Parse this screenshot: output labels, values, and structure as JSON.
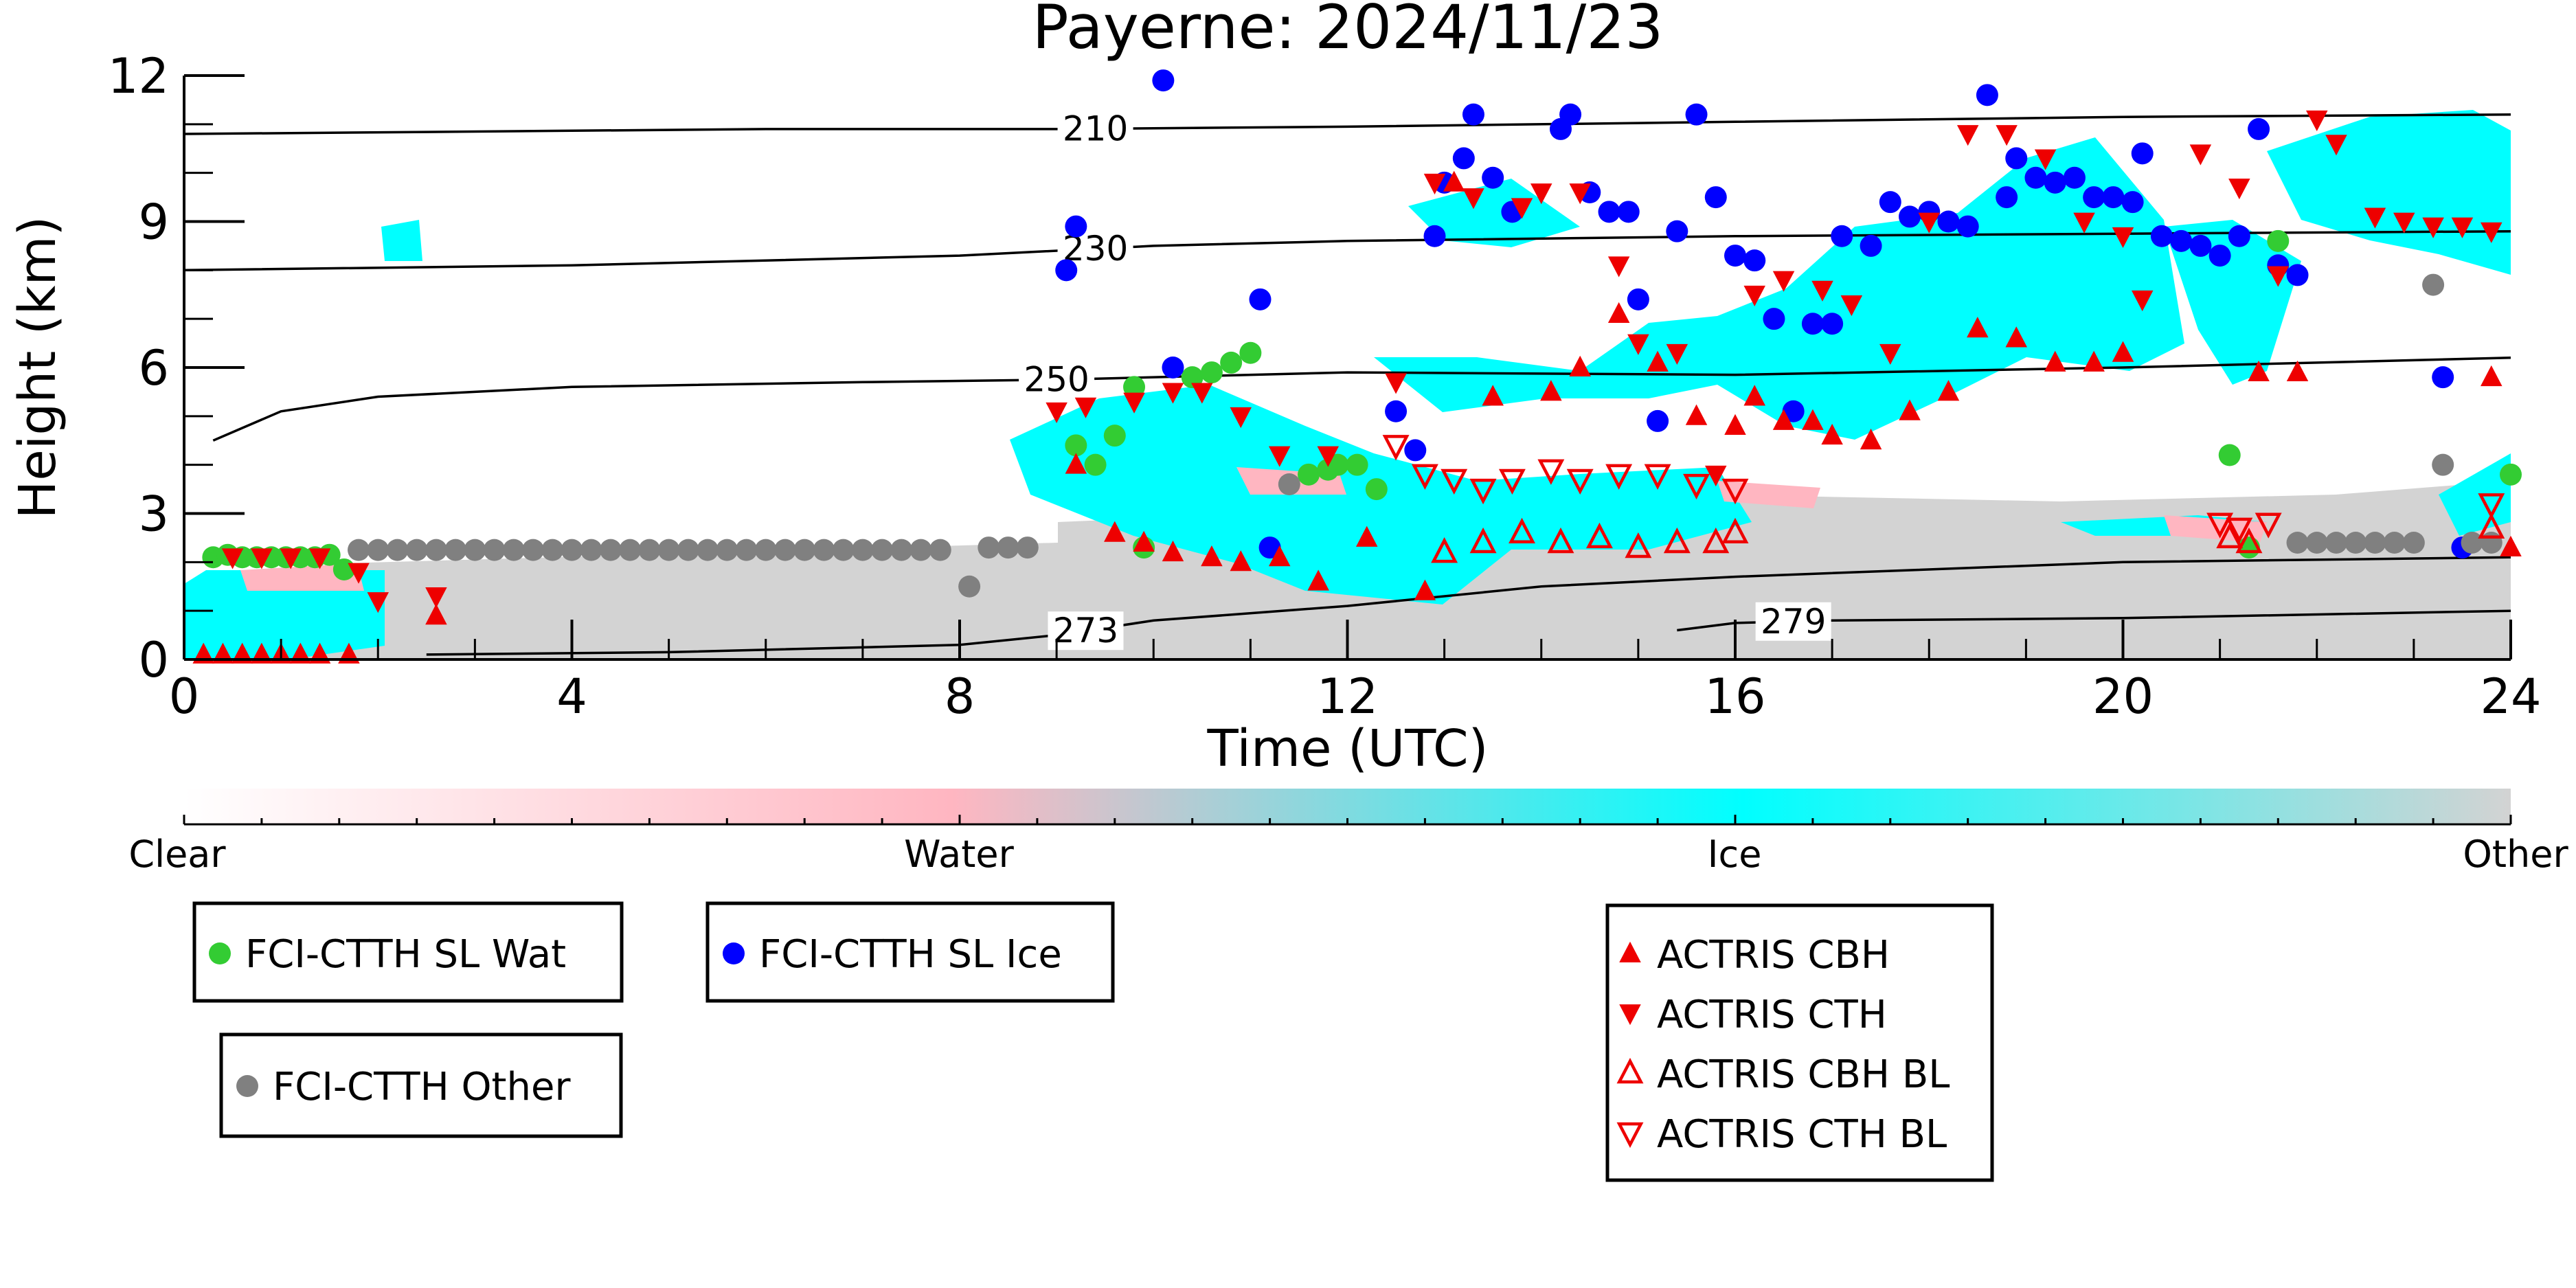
{
  "chart_data": {
    "type": "scatter",
    "title": "Payerne: 2024/11/23",
    "xlabel": "Time (UTC)",
    "ylabel": "Height (km)",
    "xlim": [
      0,
      24
    ],
    "ylim": [
      0,
      12
    ],
    "xticks": [
      0,
      4,
      8,
      12,
      16,
      20,
      24
    ],
    "yticks": [
      0,
      3,
      6,
      9,
      12
    ],
    "grid": false,
    "colorbar": {
      "labels": [
        "Clear",
        "Water",
        "Ice",
        "Other"
      ],
      "colors": [
        "#ffffff",
        "#ffb6c1",
        "#00ffff",
        "#d3d3d3"
      ]
    },
    "contours": [
      {
        "label": "210",
        "label_x": 9.4,
        "points": [
          [
            0,
            10.8
          ],
          [
            3,
            10.85
          ],
          [
            6,
            10.9
          ],
          [
            9,
            10.9
          ],
          [
            12,
            10.95
          ],
          [
            16,
            11.05
          ],
          [
            20,
            11.15
          ],
          [
            24,
            11.2
          ]
        ]
      },
      {
        "label": "230",
        "label_x": 9.4,
        "points": [
          [
            0,
            8.0
          ],
          [
            4,
            8.1
          ],
          [
            8,
            8.3
          ],
          [
            10,
            8.5
          ],
          [
            12,
            8.6
          ],
          [
            16,
            8.7
          ],
          [
            20,
            8.75
          ],
          [
            24,
            8.8
          ]
        ]
      },
      {
        "label": "250",
        "label_x": 9.0,
        "points": [
          [
            0.3,
            4.5
          ],
          [
            1,
            5.1
          ],
          [
            2,
            5.4
          ],
          [
            4,
            5.6
          ],
          [
            7,
            5.7
          ],
          [
            9,
            5.75
          ],
          [
            12,
            5.9
          ],
          [
            16,
            5.85
          ],
          [
            20,
            6.0
          ],
          [
            24,
            6.2
          ]
        ]
      },
      {
        "label": "273",
        "label_x": 9.3,
        "points": [
          [
            2.5,
            0.1
          ],
          [
            5,
            0.15
          ],
          [
            8,
            0.3
          ],
          [
            9,
            0.5
          ],
          [
            10,
            0.8
          ],
          [
            12,
            1.1
          ],
          [
            14,
            1.5
          ],
          [
            16,
            1.7
          ],
          [
            20,
            2.0
          ],
          [
            24,
            2.1
          ]
        ]
      },
      {
        "label": "279",
        "label_x": 16.6,
        "points": [
          [
            15.4,
            0.6
          ],
          [
            16,
            0.75
          ],
          [
            17,
            0.8
          ],
          [
            20,
            0.85
          ],
          [
            24,
            1.0
          ]
        ]
      }
    ],
    "series": [
      {
        "name": "FCI-CTTH SL Wat",
        "marker": "circle",
        "color": "#33cc33",
        "points": [
          [
            0.3,
            2.1
          ],
          [
            0.45,
            2.15
          ],
          [
            0.6,
            2.1
          ],
          [
            0.75,
            2.1
          ],
          [
            0.9,
            2.1
          ],
          [
            1.05,
            2.1
          ],
          [
            1.2,
            2.1
          ],
          [
            1.35,
            2.1
          ],
          [
            1.5,
            2.15
          ],
          [
            1.65,
            1.85
          ],
          [
            9.2,
            4.4
          ],
          [
            9.4,
            4.0
          ],
          [
            9.6,
            4.6
          ],
          [
            9.8,
            5.6
          ],
          [
            9.9,
            2.3
          ],
          [
            10.4,
            5.8
          ],
          [
            10.6,
            5.9
          ],
          [
            10.8,
            6.1
          ],
          [
            11.0,
            6.3
          ],
          [
            11.6,
            3.8
          ],
          [
            11.8,
            3.9
          ],
          [
            11.9,
            4.0
          ],
          [
            12.1,
            4.0
          ],
          [
            12.3,
            3.5
          ],
          [
            21.1,
            4.2
          ],
          [
            21.3,
            2.3
          ],
          [
            21.6,
            8.6
          ],
          [
            24.0,
            3.8
          ]
        ]
      },
      {
        "name": "FCI-CTTH SL Ice",
        "marker": "circle",
        "color": "#0000ff",
        "points": [
          [
            9.1,
            8.0
          ],
          [
            9.2,
            8.9
          ],
          [
            10.1,
            11.9
          ],
          [
            10.2,
            6.0
          ],
          [
            11.1,
            7.4
          ],
          [
            11.2,
            2.3
          ],
          [
            12.5,
            5.1
          ],
          [
            12.7,
            4.3
          ],
          [
            12.9,
            8.7
          ],
          [
            13.0,
            9.8
          ],
          [
            13.2,
            10.3
          ],
          [
            13.3,
            11.2
          ],
          [
            13.5,
            9.9
          ],
          [
            13.7,
            9.2
          ],
          [
            14.2,
            10.9
          ],
          [
            14.3,
            11.2
          ],
          [
            14.5,
            9.6
          ],
          [
            14.7,
            9.2
          ],
          [
            14.9,
            9.2
          ],
          [
            15.0,
            7.4
          ],
          [
            15.2,
            4.9
          ],
          [
            15.4,
            8.8
          ],
          [
            15.6,
            11.2
          ],
          [
            15.8,
            9.5
          ],
          [
            16.0,
            8.3
          ],
          [
            16.2,
            8.2
          ],
          [
            16.4,
            7.0
          ],
          [
            16.6,
            5.1
          ],
          [
            16.8,
            6.9
          ],
          [
            17.0,
            6.9
          ],
          [
            17.1,
            8.7
          ],
          [
            17.4,
            8.5
          ],
          [
            17.6,
            9.4
          ],
          [
            17.8,
            9.1
          ],
          [
            18.0,
            9.2
          ],
          [
            18.2,
            9.0
          ],
          [
            18.4,
            8.9
          ],
          [
            18.6,
            11.6
          ],
          [
            18.8,
            9.5
          ],
          [
            18.9,
            10.3
          ],
          [
            19.1,
            9.9
          ],
          [
            19.3,
            9.8
          ],
          [
            19.5,
            9.9
          ],
          [
            19.7,
            9.5
          ],
          [
            19.9,
            9.5
          ],
          [
            20.1,
            9.4
          ],
          [
            20.2,
            10.4
          ],
          [
            20.4,
            8.7
          ],
          [
            20.6,
            8.6
          ],
          [
            20.8,
            8.5
          ],
          [
            21.0,
            8.3
          ],
          [
            21.2,
            8.7
          ],
          [
            21.4,
            10.9
          ],
          [
            21.6,
            8.1
          ],
          [
            21.8,
            7.9
          ],
          [
            23.3,
            5.8
          ],
          [
            23.5,
            2.3
          ]
        ]
      },
      {
        "name": "FCI-CTTH Other",
        "marker": "circle",
        "color": "#808080",
        "points": [
          [
            1.8,
            2.25
          ],
          [
            2.0,
            2.25
          ],
          [
            2.2,
            2.25
          ],
          [
            2.4,
            2.25
          ],
          [
            2.6,
            2.25
          ],
          [
            2.8,
            2.25
          ],
          [
            3.0,
            2.25
          ],
          [
            3.2,
            2.25
          ],
          [
            3.4,
            2.25
          ],
          [
            3.6,
            2.25
          ],
          [
            3.8,
            2.25
          ],
          [
            4.0,
            2.25
          ],
          [
            4.2,
            2.25
          ],
          [
            4.4,
            2.25
          ],
          [
            4.6,
            2.25
          ],
          [
            4.8,
            2.25
          ],
          [
            5.0,
            2.25
          ],
          [
            5.2,
            2.25
          ],
          [
            5.4,
            2.25
          ],
          [
            5.6,
            2.25
          ],
          [
            5.8,
            2.25
          ],
          [
            6.0,
            2.25
          ],
          [
            6.2,
            2.25
          ],
          [
            6.4,
            2.25
          ],
          [
            6.6,
            2.25
          ],
          [
            6.8,
            2.25
          ],
          [
            7.0,
            2.25
          ],
          [
            7.2,
            2.25
          ],
          [
            7.4,
            2.25
          ],
          [
            7.6,
            2.25
          ],
          [
            7.8,
            2.25
          ],
          [
            8.1,
            1.5
          ],
          [
            8.3,
            2.3
          ],
          [
            8.5,
            2.3
          ],
          [
            8.7,
            2.3
          ],
          [
            11.4,
            3.6
          ],
          [
            21.8,
            2.4
          ],
          [
            22.0,
            2.4
          ],
          [
            22.2,
            2.4
          ],
          [
            22.4,
            2.4
          ],
          [
            22.6,
            2.4
          ],
          [
            22.8,
            2.4
          ],
          [
            23.0,
            2.4
          ],
          [
            23.2,
            7.7
          ],
          [
            23.3,
            4.0
          ],
          [
            23.6,
            2.4
          ],
          [
            23.8,
            2.4
          ]
        ]
      },
      {
        "name": "ACTRIS CBH",
        "marker": "triangle-up",
        "color": "#ee0000",
        "points": [
          [
            0.2,
            0.1
          ],
          [
            0.4,
            0.1
          ],
          [
            0.6,
            0.1
          ],
          [
            0.8,
            0.1
          ],
          [
            1.0,
            0.1
          ],
          [
            1.2,
            0.1
          ],
          [
            1.4,
            0.1
          ],
          [
            1.7,
            0.1
          ],
          [
            2.6,
            0.9
          ],
          [
            9.2,
            4.0
          ],
          [
            9.6,
            2.6
          ],
          [
            9.9,
            2.4
          ],
          [
            10.2,
            2.2
          ],
          [
            10.6,
            2.1
          ],
          [
            10.9,
            2.0
          ],
          [
            11.3,
            2.1
          ],
          [
            11.7,
            1.6
          ],
          [
            12.2,
            2.5
          ],
          [
            12.8,
            1.4
          ],
          [
            13.1,
            9.8
          ],
          [
            13.5,
            5.4
          ],
          [
            14.1,
            5.5
          ],
          [
            14.4,
            6.0
          ],
          [
            14.8,
            7.1
          ],
          [
            15.2,
            6.1
          ],
          [
            15.6,
            5.0
          ],
          [
            16.0,
            4.8
          ],
          [
            16.2,
            5.4
          ],
          [
            16.5,
            4.9
          ],
          [
            16.8,
            4.9
          ],
          [
            17.0,
            4.6
          ],
          [
            17.4,
            4.5
          ],
          [
            17.8,
            5.1
          ],
          [
            18.2,
            5.5
          ],
          [
            18.5,
            6.8
          ],
          [
            18.9,
            6.6
          ],
          [
            19.3,
            6.1
          ],
          [
            19.7,
            6.1
          ],
          [
            20.0,
            6.3
          ],
          [
            21.4,
            5.9
          ],
          [
            21.8,
            5.9
          ],
          [
            23.8,
            5.8
          ],
          [
            24.0,
            2.3
          ]
        ]
      },
      {
        "name": "ACTRIS CTH",
        "marker": "triangle-down",
        "color": "#ee0000",
        "points": [
          [
            0.5,
            2.1
          ],
          [
            0.8,
            2.1
          ],
          [
            1.1,
            2.1
          ],
          [
            1.4,
            2.1
          ],
          [
            1.8,
            1.8
          ],
          [
            2.0,
            1.2
          ],
          [
            2.6,
            1.3
          ],
          [
            9.0,
            5.1
          ],
          [
            9.3,
            5.2
          ],
          [
            9.8,
            5.3
          ],
          [
            10.2,
            5.5
          ],
          [
            10.5,
            5.5
          ],
          [
            10.9,
            5.0
          ],
          [
            11.3,
            4.2
          ],
          [
            11.8,
            4.2
          ],
          [
            12.5,
            5.7
          ],
          [
            12.9,
            9.8
          ],
          [
            13.3,
            9.5
          ],
          [
            13.8,
            9.3
          ],
          [
            14.0,
            9.6
          ],
          [
            14.4,
            9.6
          ],
          [
            14.8,
            8.1
          ],
          [
            15.0,
            6.5
          ],
          [
            15.4,
            6.3
          ],
          [
            15.8,
            3.8
          ],
          [
            16.2,
            7.5
          ],
          [
            16.5,
            7.8
          ],
          [
            16.9,
            7.6
          ],
          [
            17.2,
            7.3
          ],
          [
            17.6,
            6.3
          ],
          [
            18.0,
            9.0
          ],
          [
            18.4,
            10.8
          ],
          [
            18.8,
            10.8
          ],
          [
            19.2,
            10.3
          ],
          [
            19.6,
            9.0
          ],
          [
            20.0,
            8.7
          ],
          [
            20.2,
            7.4
          ],
          [
            20.8,
            10.4
          ],
          [
            21.2,
            9.7
          ],
          [
            21.6,
            7.9
          ],
          [
            22.0,
            11.1
          ],
          [
            22.2,
            10.6
          ],
          [
            22.6,
            9.1
          ],
          [
            22.9,
            9.0
          ],
          [
            23.2,
            8.9
          ],
          [
            23.5,
            8.9
          ],
          [
            23.8,
            8.8
          ]
        ]
      },
      {
        "name": "ACTRIS CBH BL",
        "marker": "triangle-up-open",
        "color": "#ee0000",
        "points": [
          [
            13.0,
            2.2
          ],
          [
            13.4,
            2.4
          ],
          [
            13.8,
            2.6
          ],
          [
            14.2,
            2.4
          ],
          [
            14.6,
            2.5
          ],
          [
            15.0,
            2.3
          ],
          [
            15.4,
            2.4
          ],
          [
            15.8,
            2.4
          ],
          [
            16.0,
            2.6
          ],
          [
            21.1,
            2.5
          ],
          [
            21.3,
            2.4
          ],
          [
            23.8,
            2.7
          ]
        ]
      },
      {
        "name": "ACTRIS CTH BL",
        "marker": "triangle-down-open",
        "color": "#ee0000",
        "points": [
          [
            12.5,
            4.4
          ],
          [
            12.8,
            3.8
          ],
          [
            13.1,
            3.7
          ],
          [
            13.4,
            3.5
          ],
          [
            13.7,
            3.7
          ],
          [
            14.1,
            3.9
          ],
          [
            14.4,
            3.7
          ],
          [
            14.8,
            3.8
          ],
          [
            15.2,
            3.8
          ],
          [
            15.6,
            3.6
          ],
          [
            16.0,
            3.5
          ],
          [
            21.0,
            2.8
          ],
          [
            21.2,
            2.7
          ],
          [
            21.5,
            2.8
          ],
          [
            23.8,
            3.2
          ]
        ]
      }
    ]
  }
}
